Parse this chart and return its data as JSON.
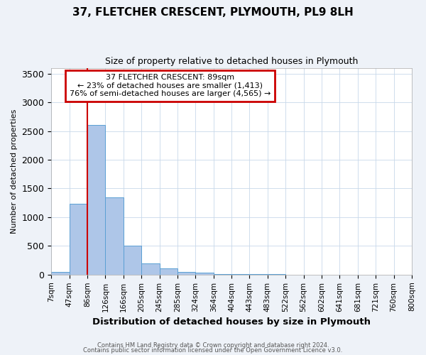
{
  "title1": "37, FLETCHER CRESCENT, PLYMOUTH, PL9 8LH",
  "title2": "Size of property relative to detached houses in Plymouth",
  "xlabel": "Distribution of detached houses by size in Plymouth",
  "ylabel": "Number of detached properties",
  "bin_labels": [
    "7sqm",
    "47sqm",
    "86sqm",
    "126sqm",
    "166sqm",
    "205sqm",
    "245sqm",
    "285sqm",
    "324sqm",
    "364sqm",
    "404sqm",
    "443sqm",
    "483sqm",
    "522sqm",
    "562sqm",
    "602sqm",
    "641sqm",
    "681sqm",
    "721sqm",
    "760sqm",
    "800sqm"
  ],
  "bin_values": [
    50,
    1230,
    2600,
    1350,
    500,
    200,
    110,
    50,
    30,
    10,
    10,
    5,
    5,
    0,
    0,
    0,
    0,
    0,
    0,
    0
  ],
  "bar_color": "#aec6e8",
  "bar_edge_color": "#5a9fd4",
  "vline_x": 2,
  "annotation_line1": "37 FLETCHER CRESCENT: 89sqm",
  "annotation_line2": "← 23% of detached houses are smaller (1,413)",
  "annotation_line3": "76% of semi-detached houses are larger (4,565) →",
  "vline_color": "#cc0000",
  "box_edge_color": "#cc0000",
  "ylim": [
    0,
    3600
  ],
  "yticks": [
    0,
    500,
    1000,
    1500,
    2000,
    2500,
    3000,
    3500
  ],
  "footer1": "Contains HM Land Registry data © Crown copyright and database right 2024.",
  "footer2": "Contains public sector information licensed under the Open Government Licence v3.0.",
  "background_color": "#eef2f8",
  "plot_bg_color": "#ffffff"
}
